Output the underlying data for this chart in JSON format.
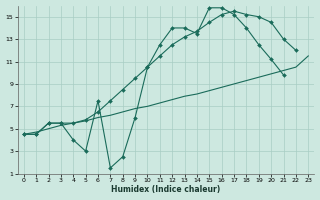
{
  "xlabel": "Humidex (Indice chaleur)",
  "bg_color": "#cde8e0",
  "grid_color": "#a8cdc4",
  "line_color": "#1a6b5a",
  "xlim": [
    -0.5,
    23.5
  ],
  "ylim": [
    1,
    16
  ],
  "yticks": [
    1,
    3,
    5,
    7,
    9,
    11,
    13,
    15
  ],
  "xticks": [
    0,
    1,
    2,
    3,
    4,
    5,
    6,
    7,
    8,
    9,
    10,
    11,
    12,
    13,
    14,
    15,
    16,
    17,
    18,
    19,
    20,
    21,
    22,
    23
  ],
  "line1_x": [
    0,
    1,
    2,
    3,
    4,
    5,
    6,
    7,
    8,
    9,
    10,
    11,
    12,
    13,
    14,
    15,
    16,
    17,
    18,
    19,
    20,
    21,
    22,
    23
  ],
  "line1_y": [
    4.5,
    4.5,
    5.5,
    5.5,
    4.0,
    3.0,
    7.5,
    1.5,
    2.5,
    6.0,
    10.5,
    12.5,
    14.0,
    14.0,
    13.5,
    15.8,
    15.8,
    15.2,
    14.0,
    12.5,
    11.2,
    9.8,
    null,
    null
  ],
  "line2_x": [
    0,
    1,
    2,
    3,
    4,
    5,
    6,
    7,
    8,
    9,
    10,
    11,
    12,
    13,
    14,
    15,
    16,
    17,
    18,
    19,
    20,
    21,
    22,
    23
  ],
  "line2_y": [
    4.5,
    4.7,
    5.0,
    5.3,
    5.5,
    5.7,
    6.0,
    6.2,
    6.5,
    6.8,
    7.0,
    7.3,
    7.6,
    7.9,
    8.1,
    8.4,
    8.7,
    9.0,
    9.3,
    9.6,
    9.9,
    10.2,
    10.5,
    11.5
  ],
  "line3_x": [
    0,
    1,
    2,
    3,
    4,
    5,
    6,
    7,
    8,
    9,
    10,
    11,
    12,
    13,
    14,
    15,
    16,
    17,
    18,
    19,
    20,
    21,
    22,
    23
  ],
  "line3_y": [
    4.5,
    4.5,
    5.5,
    5.5,
    5.5,
    5.8,
    6.5,
    7.5,
    8.5,
    9.5,
    10.5,
    11.5,
    12.5,
    13.2,
    13.7,
    14.5,
    15.2,
    15.5,
    15.2,
    15.0,
    14.5,
    13.0,
    12.0,
    null
  ]
}
